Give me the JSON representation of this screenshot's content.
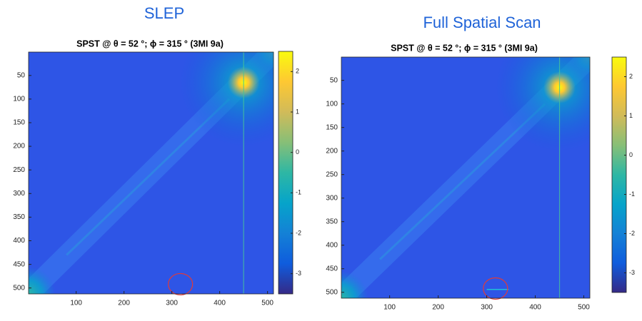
{
  "chart_data": [
    {
      "type": "image",
      "heading": "SLEP",
      "title": "SPST @ θ = 52 °; ϕ = 315 ° (3MI 9a)",
      "xlim": [
        0.5,
        512.5
      ],
      "ylim": [
        0.5,
        512.5
      ],
      "xticks": [
        100,
        200,
        300,
        400,
        500
      ],
      "yticks": [
        50,
        100,
        150,
        200,
        250,
        300,
        350,
        400,
        450,
        500
      ],
      "clim": [
        -3.5,
        2.5
      ],
      "cticks": [
        2,
        1,
        0,
        -1,
        -2,
        -3
      ],
      "colormap": [
        "#352a87",
        "#0f5cdd",
        "#1481d6",
        "#06a4ca",
        "#2eb7a4",
        "#87bf77",
        "#d1bb59",
        "#fec832",
        "#f9fb0e"
      ]
    },
    {
      "type": "image",
      "heading": "Full Spatial Scan",
      "title": "SPST @ θ = 52 °; ϕ = 315 ° (3MI 9a)",
      "xlim": [
        0.5,
        512.5
      ],
      "ylim": [
        0.5,
        512.5
      ],
      "xticks": [
        100,
        200,
        300,
        400,
        500
      ],
      "yticks": [
        50,
        100,
        150,
        200,
        250,
        300,
        350,
        400,
        450,
        500
      ],
      "clim": [
        -3.5,
        2.5
      ],
      "cticks": [
        2,
        1,
        0,
        -1,
        -2,
        -3
      ],
      "colormap": [
        "#352a87",
        "#0f5cdd",
        "#1481d6",
        "#06a4ca",
        "#2eb7a4",
        "#87bf77",
        "#d1bb59",
        "#fec832",
        "#f9fb0e"
      ]
    }
  ]
}
